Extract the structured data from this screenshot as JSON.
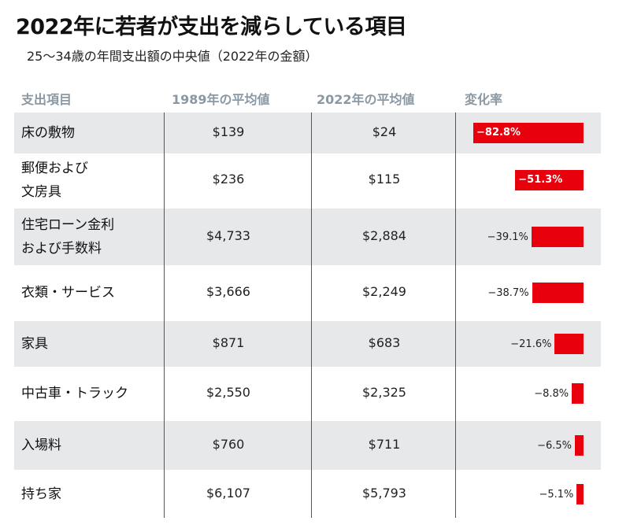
{
  "title": "2022年に若者が支出を減らしている項目",
  "subtitle": "25〜34歳の年間支出額の中央値（2022年の金額）",
  "chart_data": {
    "type": "table",
    "columns": [
      "支出項目",
      "1989年の平均値",
      "2022年の平均値",
      "変化率"
    ],
    "rows": [
      {
        "item_lines": [
          "床の敷物"
        ],
        "v1989": "$139",
        "v2022": "$24",
        "change": -82.8,
        "change_label": "−82.8%"
      },
      {
        "item_lines": [
          "郵便および",
          "文房具"
        ],
        "v1989": "$236",
        "v2022": "$115",
        "change": -51.3,
        "change_label": "−51.3%"
      },
      {
        "item_lines": [
          "住宅ローン金利",
          "および手数料"
        ],
        "v1989": "$4,733",
        "v2022": "$2,884",
        "change": -39.1,
        "change_label": "−39.1%"
      },
      {
        "item_lines": [
          "衣類・サービス"
        ],
        "v1989": "$3,666",
        "v2022": "$2,249",
        "change": -38.7,
        "change_label": "−38.7%"
      },
      {
        "item_lines": [
          "家具"
        ],
        "v1989": "$871",
        "v2022": "$683",
        "change": -21.6,
        "change_label": "−21.6%"
      },
      {
        "item_lines": [
          "中古車・トラック"
        ],
        "v1989": "$2,550",
        "v2022": "$2,325",
        "change": -8.8,
        "change_label": "−8.8%"
      },
      {
        "item_lines": [
          "入場料"
        ],
        "v1989": "$760",
        "v2022": "$711",
        "change": -6.5,
        "change_label": "−6.5%"
      },
      {
        "item_lines": [
          "持ち家"
        ],
        "v1989": "$6,107",
        "v2022": "$5,793",
        "change": -5.1,
        "change_label": "−5.1%"
      }
    ],
    "bar_color": "#e8000d"
  }
}
